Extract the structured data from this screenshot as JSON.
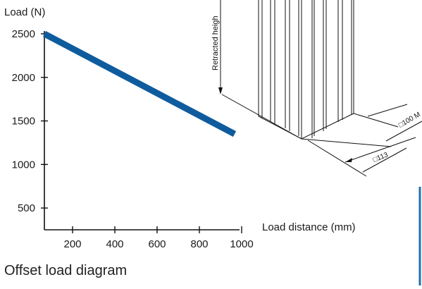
{
  "chart_data": {
    "type": "line",
    "title": "",
    "ylabel": "Load (N)",
    "xlabel": "Load distance (mm)",
    "x": [
      100,
      1000
    ],
    "series": [
      {
        "name": "",
        "values": [
          2500,
          1350
        ],
        "color": "#0e5c9e"
      }
    ],
    "xlim": [
      100,
      1000
    ],
    "ylim": [
      250,
      2500
    ],
    "xticks": [
      200,
      400,
      600,
      800,
      1000
    ],
    "yticks": [
      500,
      1000,
      1500,
      2000,
      2500
    ],
    "grid": false,
    "legend": "none"
  },
  "caption": "Offset load diagram",
  "drawing": {
    "label_height": "Retracted heigh",
    "label_dim1": "□100 M",
    "label_dim2": "□113",
    "line_color": "#111111",
    "accent_color": "#1f6fb2"
  }
}
